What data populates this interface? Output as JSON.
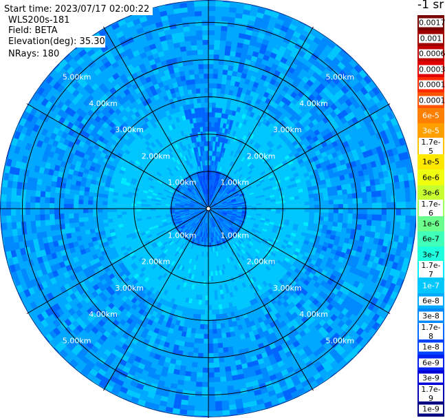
{
  "info": {
    "start_time": "Start time: 2023/07/17 02:00:22",
    "instrument": "WLS200s-181",
    "field": "Field: BETA",
    "elevation": "Elevation(deg): 35.30",
    "nrays": "NRays: 180"
  },
  "colorbar": {
    "title": "-1 sr",
    "labels": [
      "0.0017",
      "0.001",
      "0.0006",
      "0.0003",
      "0.00017",
      "0.0001",
      "6e-5",
      "3e-5",
      "1.7e-5",
      "1e-5",
      "6e-6",
      "3e-6",
      "1.7e-6",
      "1e-6",
      "6e-7",
      "3e-7",
      "1.7e-7",
      "1e-7",
      "6e-8",
      "3e-8",
      "1.7e-8",
      "1e-8",
      "6e-9",
      "3e-9",
      "1.7e-9",
      "1e-9"
    ],
    "colors": [
      "#7a0000",
      "#9e0000",
      "#c20000",
      "#e00000",
      "#ff2a00",
      "#ff5500",
      "#ff7f00",
      "#ffa000",
      "#ffc400",
      "#ffe800",
      "#f0ff10",
      "#c8ff30",
      "#9cff5c",
      "#6cff8c",
      "#40ffb8",
      "#1effde",
      "#00ecff",
      "#00c8ff",
      "#00a8ff",
      "#0088ff",
      "#0064ff",
      "#0040ff",
      "#0020f0",
      "#0000d8",
      "#0000b0",
      "#000080"
    ]
  },
  "chart_data": {
    "type": "heatmap",
    "projection": "polar-ppi",
    "field": "BETA",
    "units": "sr-1",
    "elevation_deg": 35.3,
    "nrays": 180,
    "range_rings_km": [
      1.0,
      2.0,
      3.0,
      4.0,
      5.0
    ],
    "range_ring_labels": [
      "1.00km",
      "2.00km",
      "3.00km",
      "4.00km",
      "5.00km"
    ],
    "azimuth_spokes_deg": [
      0,
      30,
      60,
      90,
      120,
      150,
      180,
      210,
      240,
      270,
      300,
      330
    ],
    "max_range_km": 5.6,
    "typical_values": {
      "near_0_to_1km": "3e-8 to 1e-8",
      "1km_to_2.5km": "1e-7",
      "beyond_3km": "6e-8 to 1.7e-8"
    }
  }
}
